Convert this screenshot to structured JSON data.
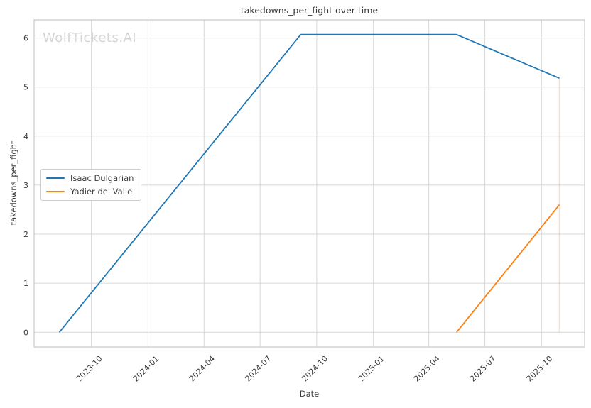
{
  "watermark": {
    "text": "WolfTickets.AI",
    "color": "#d5d5d5"
  },
  "chart_data": {
    "type": "line",
    "title": "takedowns_per_fight over time",
    "xlabel": "Date",
    "ylabel": "takedowns_per_fight",
    "grid": true,
    "legend_position": "center-left",
    "x_ticks": [
      "2023-10",
      "2024-01",
      "2024-04",
      "2024-07",
      "2024-10",
      "2025-01",
      "2025-04",
      "2025-07",
      "2025-10"
    ],
    "y_ticks": [
      0,
      1,
      2,
      3,
      4,
      5,
      6
    ],
    "xlim": [
      "2023-06-30",
      "2025-12-10"
    ],
    "ylim": [
      -0.3,
      6.37
    ],
    "series": [
      {
        "name": "Isaac Dulgarian",
        "color": "#1f77b4",
        "points": [
          [
            "2023-08-10",
            0
          ],
          [
            "2024-09-05",
            6.07
          ],
          [
            "2025-05-16",
            6.07
          ],
          [
            "2025-10-30",
            5.18
          ]
        ]
      },
      {
        "name": "Yadier del Valle",
        "color": "#ff7f0e",
        "points": [
          [
            "2025-05-16",
            0
          ],
          [
            "2025-10-30",
            2.6
          ]
        ]
      }
    ],
    "annotations": [
      {
        "type": "vline",
        "x": "2025-10-30",
        "y_from": 0,
        "y_to": 5.18,
        "color": "#ff7f0e",
        "opacity": 0.25
      }
    ]
  },
  "style_colors": {
    "grid": "#d7d7d7",
    "frame": "#c9c9c9",
    "tick_text": "#3b3b3b"
  }
}
